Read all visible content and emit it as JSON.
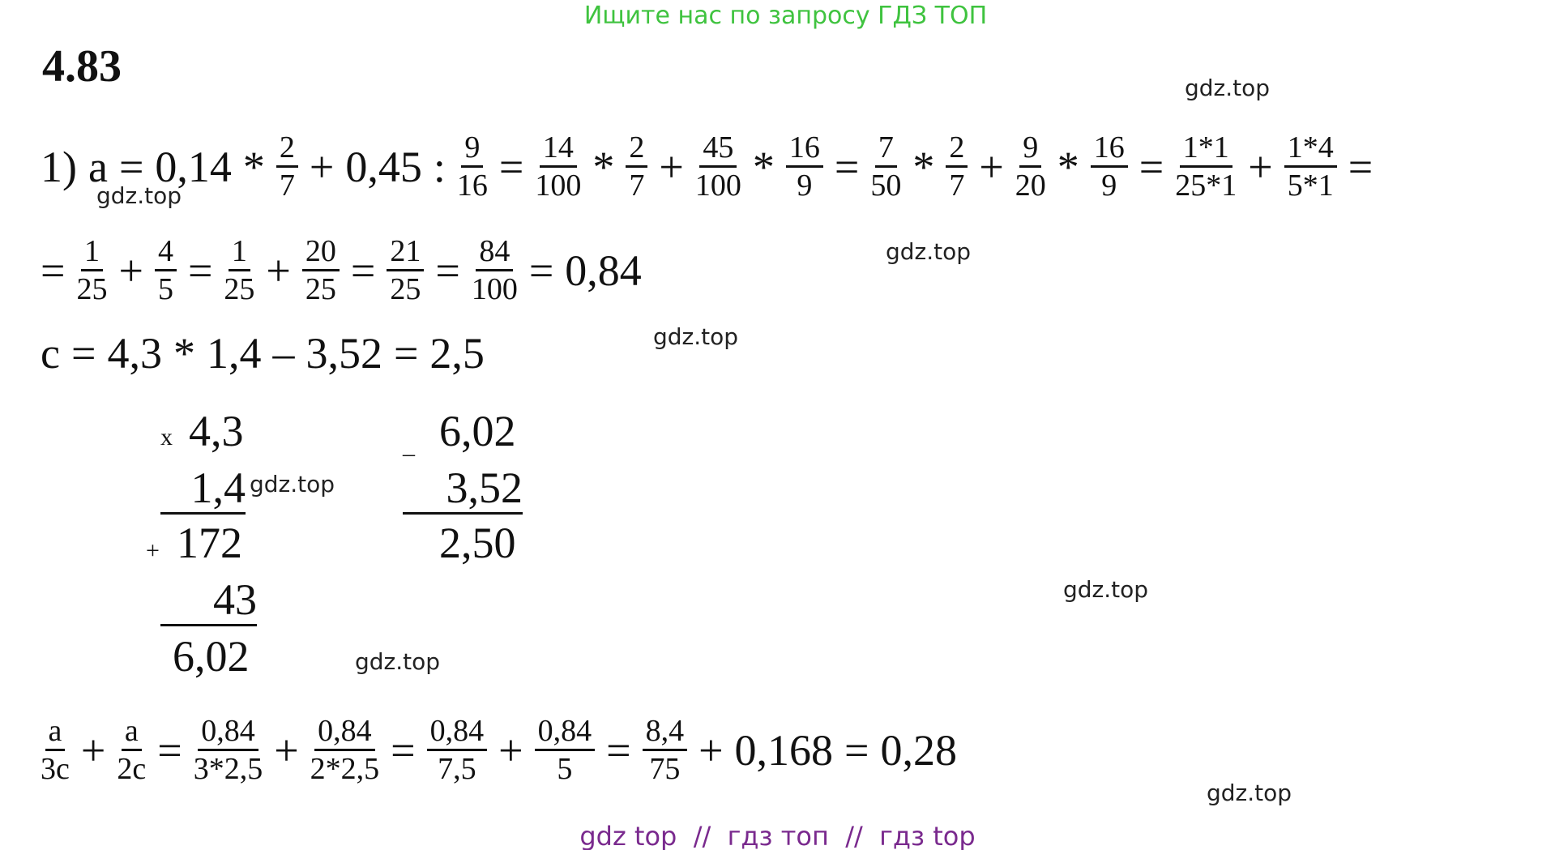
{
  "banner": "Ищите нас по запросу ГДЗ ТОП",
  "problem": "4.83",
  "lines": [
    [
      "1)",
      "a",
      "=",
      "0,14",
      "*",
      {
        "num": "2",
        "den": "7"
      },
      "+",
      "0,45",
      ":",
      {
        "num": "9",
        "den": "16"
      },
      "=",
      {
        "num": "14",
        "den": "100"
      },
      "*",
      {
        "num": "2",
        "den": "7"
      },
      "+",
      {
        "num": "45",
        "den": "100"
      },
      "*",
      {
        "num": "16",
        "den": "9"
      },
      "=",
      {
        "num": "7",
        "den": "50"
      },
      "*",
      {
        "num": "2",
        "den": "7"
      },
      "+",
      {
        "num": "9",
        "den": "20"
      },
      "*",
      {
        "num": "16",
        "den": "9"
      },
      "=",
      {
        "num": "1*1",
        "den": "25*1"
      },
      "+",
      {
        "num": "1*4",
        "den": "5*1"
      },
      "="
    ],
    [
      "=",
      {
        "num": "1",
        "den": "25"
      },
      "+",
      {
        "num": "4",
        "den": "5"
      },
      "=",
      {
        "num": "1",
        "den": "25"
      },
      "+",
      {
        "num": "20",
        "den": "25"
      },
      "=",
      {
        "num": "21",
        "den": "25"
      },
      "=",
      {
        "num": "84",
        "den": "100"
      },
      "=",
      "0,84"
    ],
    [
      "c",
      "=",
      "4,3",
      "*",
      "1,4",
      "–",
      "3,52",
      "=",
      "2,5"
    ],
    [
      {
        "num": "a",
        "den": "3c"
      },
      "+",
      {
        "num": "a",
        "den": "2c"
      },
      "=",
      {
        "num": "0,84",
        "den": "3*2,5"
      },
      "+",
      {
        "num": "0,84",
        "den": "2*2,5"
      },
      "=",
      {
        "num": "0,84",
        "den": "7,5"
      },
      "+",
      {
        "num": "0,84",
        "den": "5"
      },
      "=",
      {
        "num": "8,4",
        "den": "75"
      },
      "+",
      "0,168",
      "=",
      "0,28"
    ]
  ],
  "multiplication": [
    "x",
    "4,3",
    "1,4",
    "+",
    "172",
    "43",
    "6,02"
  ],
  "subtraction": [
    "_",
    "6,02",
    "3,52",
    "2,50"
  ],
  "watermarks": [
    "gdz.top",
    "gdz.top",
    "gdz.top",
    "gdz.top",
    "gdz.top",
    "gdz.top",
    "gdz.top",
    "gdz.top"
  ],
  "footer": "gdz top  //  гдз топ  //  гдз top"
}
